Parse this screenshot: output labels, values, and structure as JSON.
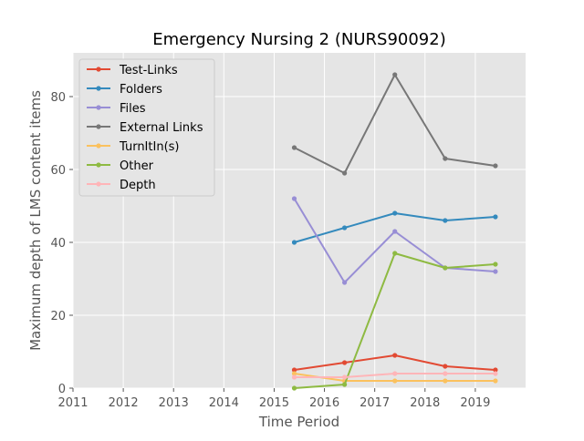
{
  "chart_data": {
    "type": "line",
    "title": "Emergency Nursing 2 (NURS90092)",
    "xlabel": "Time Period",
    "ylabel": "Maximum depth of LMS content items",
    "xlim": [
      2011,
      2020
    ],
    "ylim": [
      0,
      92
    ],
    "x_ticks": [
      "2011",
      "2012",
      "2013",
      "2014",
      "2015",
      "2016",
      "2017",
      "2018",
      "2019"
    ],
    "y_ticks": [
      "0",
      "20",
      "40",
      "60",
      "80"
    ],
    "grid": true,
    "legend_position": "upper-left",
    "background": "#e5e5e5",
    "x": [
      2015.4,
      2016.4,
      2017.4,
      2018.4,
      2019.4
    ],
    "series": [
      {
        "name": "Test-Links",
        "color": "#e24a33",
        "values": [
          5,
          7,
          9,
          6,
          5
        ]
      },
      {
        "name": "Folders",
        "color": "#348abd",
        "values": [
          40,
          44,
          48,
          46,
          47
        ]
      },
      {
        "name": "Files",
        "color": "#988ed5",
        "values": [
          52,
          29,
          43,
          33,
          32
        ]
      },
      {
        "name": "External Links",
        "color": "#777777",
        "values": [
          66,
          59,
          86,
          63,
          61
        ]
      },
      {
        "name": "TurnItIn(s)",
        "color": "#fbc15e",
        "values": [
          4,
          2,
          2,
          2,
          2
        ]
      },
      {
        "name": "Other",
        "color": "#8eba42",
        "values": [
          0,
          1,
          37,
          33,
          34
        ]
      },
      {
        "name": "Depth",
        "color": "#ffb5b8",
        "values": [
          3,
          3,
          4,
          4,
          4
        ]
      }
    ]
  }
}
